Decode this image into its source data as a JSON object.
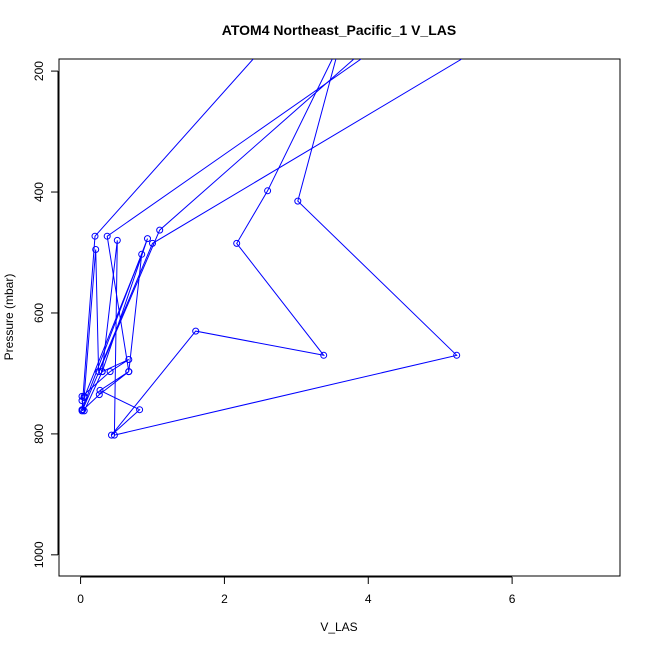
{
  "chart_data": {
    "type": "line",
    "title": "ATOM4 Northeast_Pacific_1 V_LAS",
    "xlabel": "V_LAS",
    "ylabel": "Pressure (mbar)",
    "xlim": [
      -0.3,
      7.5
    ],
    "ylim": [
      1035,
      180
    ],
    "y_reversed": true,
    "xticks": [
      0,
      2,
      4,
      6
    ],
    "yticks": [
      200,
      400,
      600,
      800,
      1000
    ],
    "grid": false,
    "legend": "none",
    "color": "#0000ff",
    "series": [
      {
        "x": [
          3.5,
          2.6,
          2.17,
          3.38,
          1.6,
          0.43,
          0.82,
          0.27,
          0.67,
          0.26,
          0.02
        ],
        "y": [
          180,
          398,
          485,
          670,
          630,
          802,
          760,
          728,
          697,
          735,
          762
        ]
      },
      {
        "x": [
          3.55,
          3.02,
          5.23,
          0.47,
          0.51,
          0.3,
          0.05,
          0.02
        ],
        "y": [
          180,
          415,
          670,
          802,
          480,
          697,
          762,
          745
        ]
      },
      {
        "x": [
          2.4,
          0.2,
          0.02,
          0.93,
          0.3,
          0.67,
          0.41,
          0.02
        ],
        "y": [
          180,
          473,
          760,
          477,
          697,
          677,
          697,
          738
        ]
      },
      {
        "x": [
          3.9,
          0.37,
          0.67,
          0.85,
          0.05
        ],
        "y": [
          180,
          473,
          697,
          503,
          740
        ]
      },
      {
        "x": [
          5.3,
          1.0,
          0.25,
          0.21,
          0.05
        ],
        "y": [
          180,
          485,
          697,
          495,
          738
        ]
      },
      {
        "x": [
          3.8,
          1.1,
          0.03
        ],
        "y": [
          180,
          463,
          760
        ]
      }
    ]
  }
}
